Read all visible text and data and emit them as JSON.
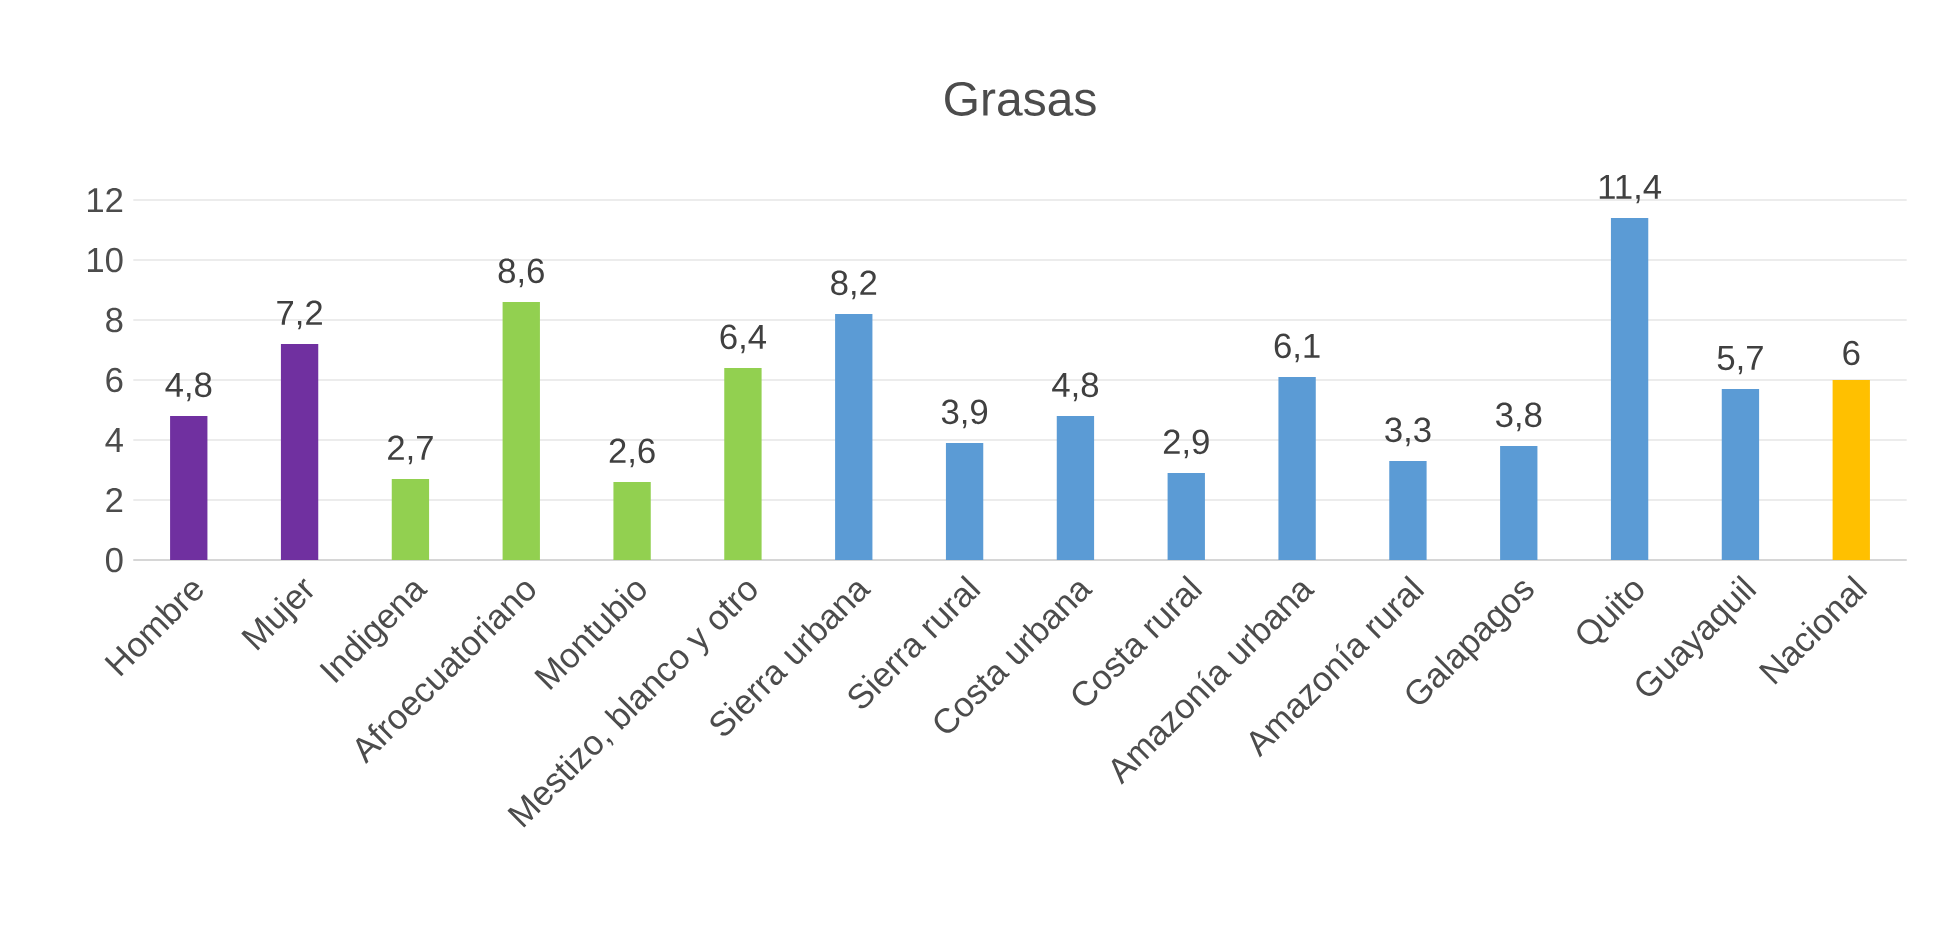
{
  "chart_data": {
    "type": "bar",
    "title": "Grasas",
    "categories": [
      "Hombre",
      "Mujer",
      "Indigena",
      "Afroecuatoriano",
      "Montubio",
      "Mestizo, blanco y otro",
      "Sierra urbana",
      "Sierra rural",
      "Costa urbana",
      "Costa rural",
      "Amazonía urbana",
      "Amazonía rural",
      "Galapagos",
      "Quito",
      "Guayaquil",
      "Nacional"
    ],
    "values": [
      4.8,
      7.2,
      2.7,
      8.6,
      2.6,
      6.4,
      8.2,
      3.9,
      4.8,
      2.9,
      6.1,
      3.3,
      3.8,
      11.4,
      5.7,
      6
    ],
    "value_labels": [
      "4,8",
      "7,2",
      "2,7",
      "8,6",
      "2,6",
      "6,4",
      "8,2",
      "3,9",
      "4,8",
      "2,9",
      "6,1",
      "3,3",
      "3,8",
      "11,4",
      "5,7",
      "6"
    ],
    "colors": [
      "#7030a0",
      "#7030a0",
      "#92d050",
      "#92d050",
      "#92d050",
      "#92d050",
      "#5b9bd5",
      "#5b9bd5",
      "#5b9bd5",
      "#5b9bd5",
      "#5b9bd5",
      "#5b9bd5",
      "#5b9bd5",
      "#5b9bd5",
      "#5b9bd5",
      "#ffc000"
    ],
    "ylim": [
      0,
      12
    ],
    "yticks": [
      0,
      2,
      4,
      6,
      8,
      10,
      12
    ],
    "grid": "y"
  }
}
